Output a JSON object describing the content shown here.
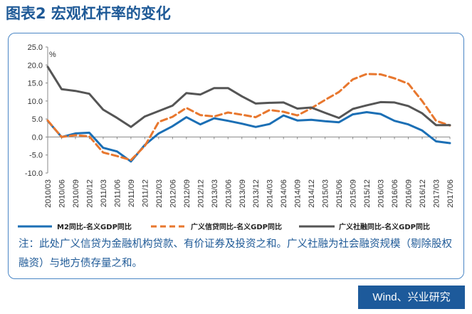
{
  "title": "图表2  宏观杠杆率的变化",
  "note": "注：此处广义信贷为金融机构贷款、有价证券及投资之和。广义社融为社会融资规模（剔除股权融资）与地方债存量之和。",
  "source": "Wind、兴业研究",
  "colors": {
    "title": "#1f5a97",
    "m2": "#1b6fb5",
    "credit": "#e8772e",
    "social": "#555555"
  },
  "chart_data": {
    "type": "line",
    "ylabel": "%",
    "ylim": [
      -10,
      25
    ],
    "yticks": [
      "25.0",
      "20.0",
      "15.0",
      "10.0",
      "5.0",
      "0.0",
      "-5.0",
      "-10.0"
    ],
    "x": [
      "2010/03",
      "2010/06",
      "2010/09",
      "2010/12",
      "2011/03",
      "2011/06",
      "2011/09",
      "2011/12",
      "2012/03",
      "2012/06",
      "2012/09",
      "2012/12",
      "2013/03",
      "2013/06",
      "2013/09",
      "2013/12",
      "2014/03",
      "2014/06",
      "2014/09",
      "2014/12",
      "2015/03",
      "2015/06",
      "2015/09",
      "2015/12",
      "2016/03",
      "2016/06",
      "2016/09",
      "2016/12",
      "2017/03",
      "2017/06"
    ],
    "series": [
      {
        "name": "M2同比-名义GDP同比",
        "values": [
          4.5,
          0.0,
          1.0,
          1.2,
          -3.0,
          -4.0,
          -6.8,
          -2.2,
          1.0,
          3.0,
          5.5,
          3.5,
          5.2,
          4.5,
          3.7,
          2.8,
          3.6,
          6.0,
          4.6,
          4.8,
          4.4,
          4.1,
          6.3,
          6.9,
          6.4,
          4.5,
          3.5,
          1.8,
          -1.2,
          -1.7
        ]
      },
      {
        "name": "广义信贷同比-名义GDP同比",
        "values": [
          4.6,
          0.0,
          0.5,
          0.2,
          -4.3,
          -5.3,
          -6.4,
          -2.5,
          4.2,
          5.6,
          8.1,
          6.1,
          5.7,
          6.8,
          6.2,
          5.5,
          7.5,
          7.0,
          6.0,
          8.0,
          10.3,
          12.5,
          16.0,
          17.5,
          17.4,
          16.3,
          14.8,
          10.0,
          4.5,
          3.2
        ]
      },
      {
        "name": "广义社融同比-名义GDP同比",
        "values": [
          19.5,
          13.3,
          12.8,
          12.0,
          7.6,
          5.3,
          2.8,
          5.7,
          7.2,
          8.7,
          12.2,
          11.8,
          13.6,
          13.6,
          11.3,
          9.3,
          9.5,
          9.6,
          7.9,
          8.2,
          6.7,
          5.3,
          7.8,
          8.8,
          9.7,
          9.6,
          8.6,
          6.6,
          3.3,
          3.3
        ]
      }
    ]
  }
}
